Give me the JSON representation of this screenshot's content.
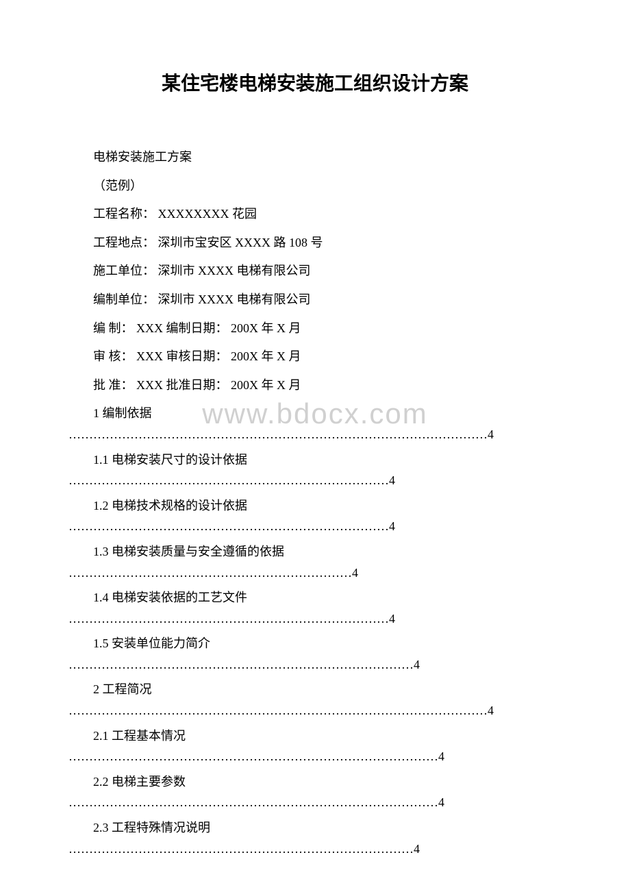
{
  "title": "某住宅楼电梯安装施工组织设计方案",
  "watermark": "www.bdocx.com",
  "info": {
    "subtitle": "电梯安装施工方案",
    "note": "（范例）",
    "projectNameLabel": "工程名称：",
    "projectNameValue": " XXXXXXXX 花园",
    "projectLocationLabel": "工程地点：",
    "projectLocationValue": " 深圳市宝安区 XXXX 路 108 号",
    "constructorLabel": "施工单位：",
    "constructorValue": " 深圳市 XXXX 电梯有限公司",
    "compilerOrgLabel": "编制单位：",
    "compilerOrgValue": " 深圳市 XXXX 电梯有限公司",
    "compilerLabel": "编 制：",
    "compilerValue": " XXX  编制日期： 200X 年 X 月",
    "reviewerLabel": "审 核：",
    "reviewerValue": " XXX 审核日期： 200X 年 X 月",
    "approverLabel": "批 准：",
    "approverValue": " XXX 批准日期： 200X 年 X 月"
  },
  "toc": [
    {
      "label": "1 编制依据",
      "dots": "…………………………………………………………………………………………4"
    },
    {
      "label": "1.1 电梯安装尺寸的设计依据",
      "dots": "……………………………………………………………………4"
    },
    {
      "label": "1.2 电梯技术规格的设计依据",
      "dots": "……………………………………………………………………4"
    },
    {
      "label": "1.3 电梯安装质量与安全遵循的依据",
      "dots": "……………………………………………………………4"
    },
    {
      "label": "1.4 电梯安装依据的工艺文件",
      "dots": "……………………………………………………………………4"
    },
    {
      "label": "1.5 安装单位能力简介",
      "dots": "…………………………………………………………………………4"
    },
    {
      "label": "2 工程简况",
      "dots": "…………………………………………………………………………………………4"
    },
    {
      "label": "2.1 工程基本情况",
      "dots": "………………………………………………………………………………4"
    },
    {
      "label": "2.2 电梯主要参数",
      "dots": "………………………………………………………………………………4"
    },
    {
      "label": "2.3 工程特殊情况说明",
      "dots": "…………………………………………………………………………4"
    }
  ]
}
